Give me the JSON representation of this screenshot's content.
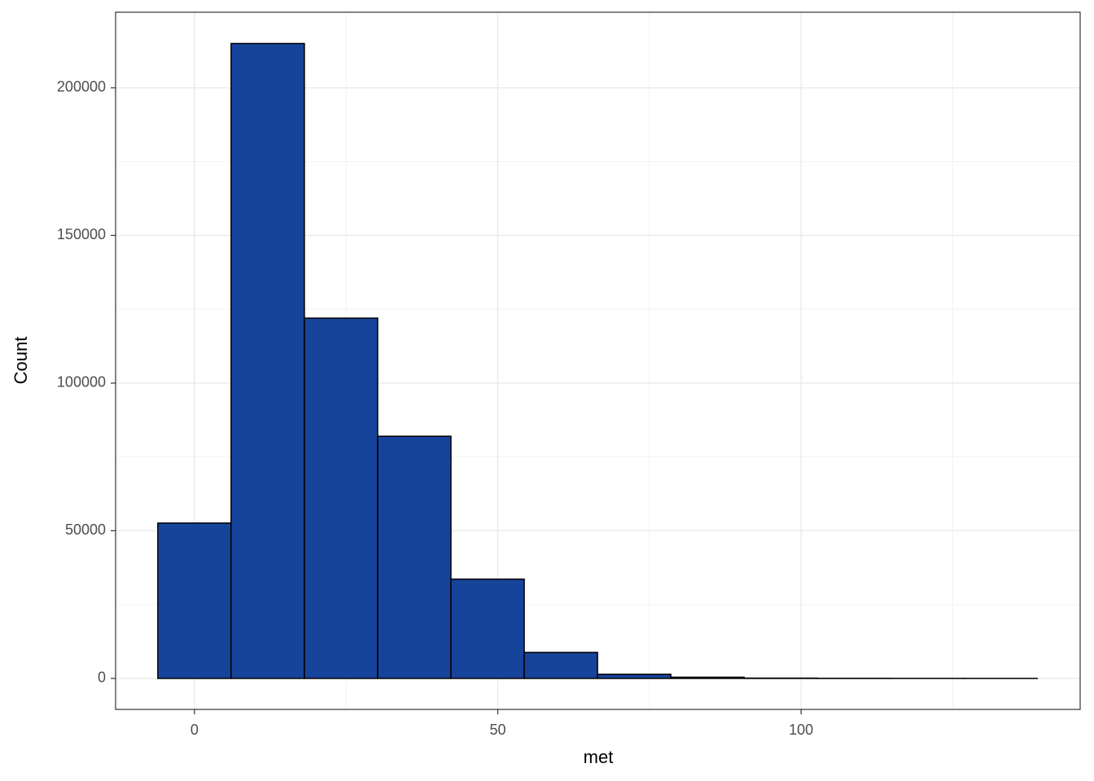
{
  "chart_data": {
    "type": "histogram",
    "x_label": "met",
    "y_label": "Count",
    "bins": [
      -6.04,
      6.04,
      18.12,
      30.2,
      42.28,
      54.36,
      66.44,
      78.52,
      90.6,
      102.68,
      114.76,
      126.84,
      138.92
    ],
    "values": [
      52600,
      215000,
      122000,
      82000,
      33600,
      8800,
      1400,
      400,
      100,
      30,
      10,
      5
    ],
    "color": "#17449b",
    "edge_color": "#000000",
    "xlim": [
      -13,
      146
    ],
    "ylim": [
      -10500,
      225600
    ],
    "xticks": [
      0,
      50,
      100
    ],
    "yticks": [
      0,
      50000,
      100000,
      150000,
      200000
    ],
    "x_minor_ticks": [
      25,
      75,
      125
    ],
    "y_minor_ticks": [
      25000,
      75000,
      125000,
      175000
    ],
    "grid": true
  }
}
